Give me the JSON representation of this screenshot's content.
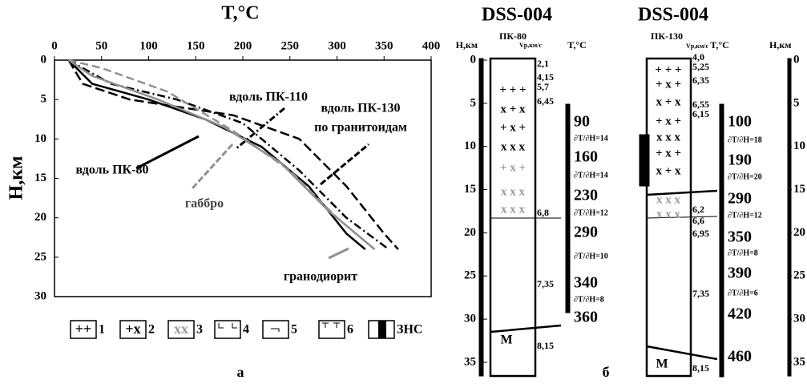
{
  "chart_data": {
    "type": "line",
    "title": "T,°C",
    "y_label": "H,км",
    "xlim": [
      0,
      400
    ],
    "xticks": [
      0,
      50,
      100,
      150,
      200,
      250,
      300,
      350,
      400
    ],
    "ylim": [
      30,
      0
    ],
    "yticks": [
      0,
      5,
      10,
      15,
      20,
      25,
      30
    ],
    "y_inverted": true,
    "series": [
      {
        "color": "#000000",
        "dash": "10,4,2,4",
        "x": [
          15,
          60,
          130,
          200,
          260,
          310,
          355
        ],
        "values": [
          0,
          3,
          5,
          8,
          14,
          20,
          24
        ]
      },
      {
        "color": "#000000",
        "dash": "12,5",
        "x": [
          15,
          30,
          80,
          190,
          260,
          310,
          350,
          365
        ],
        "values": [
          0,
          3,
          5,
          7,
          10,
          16,
          22,
          24
        ]
      },
      {
        "color": "#000000",
        "dash": "",
        "x": [
          15,
          40,
          100,
          160,
          220,
          270,
          310,
          330
        ],
        "values": [
          0,
          3,
          5,
          7.5,
          11,
          16,
          22,
          24
        ]
      },
      {
        "color": "#909090",
        "dash": "",
        "x": [
          15,
          40,
          110,
          180,
          240,
          290,
          340
        ],
        "values": [
          0,
          2,
          5,
          8.5,
          13,
          19,
          24
        ]
      },
      {
        "color": "#909090",
        "dash": "10,5",
        "x": [
          15,
          50,
          120,
          190,
          250,
          300,
          340
        ],
        "values": [
          0,
          1,
          4,
          9,
          14,
          20,
          24
        ]
      }
    ],
    "annotations": [
      "вдоль ПК-110",
      "вдоль ПК-130",
      "по гранитоидам",
      "вдоль ПК-80",
      "габбро",
      "гранодиорит"
    ],
    "legend": [
      {
        "symbol": "++",
        "label": "1"
      },
      {
        "symbol": "+x",
        "label": "2"
      },
      {
        "symbol": "xx",
        "label": "3"
      },
      {
        "label": "4"
      },
      {
        "label": "5"
      },
      {
        "label": "6"
      },
      {
        "label": "ЗНС"
      }
    ]
  },
  "columns": [
    {
      "title": "DSS-004",
      "profile": "ПК-80",
      "h_label": "H,км",
      "v_label": "Vp,км/с",
      "t_label": "T,°C",
      "depth_ticks": [
        0,
        5,
        10,
        15,
        20,
        25,
        30,
        35
      ],
      "velocities": [
        "2,1",
        "4,15",
        "5,7",
        "6,45",
        "6,8",
        "7,35",
        "8,15"
      ],
      "temperatures": [
        "90",
        "160",
        "230",
        "290",
        "340",
        "360"
      ],
      "gradients": [
        "∂T/∂H=14",
        "∂T/∂H=14",
        "∂T/∂H=12",
        "∂T/∂H=10",
        "∂T/∂H=8"
      ],
      "rows": [
        "+ + +",
        "x + x",
        "+ x +",
        "x x x",
        "+ x +",
        "x x x",
        "x x x"
      ],
      "moho": "M"
    },
    {
      "title": "DSS-004",
      "profile": "ПК-130",
      "h_label": "H,км",
      "v_label": "Vp,км/с",
      "t_label": "T,°C",
      "depth_ticks": [
        0,
        5,
        10,
        15,
        20,
        25,
        30,
        35
      ],
      "velocities": [
        "4,0",
        "5,25",
        "6,35",
        "6,55",
        "6,15",
        "6,2",
        "6,6",
        "6,95",
        "7,35",
        "8,15"
      ],
      "temperatures": [
        "100",
        "190",
        "290",
        "350",
        "390",
        "420",
        "460"
      ],
      "gradients": [
        "∂T/∂H=18",
        "∂T/∂H=20",
        "∂T/∂H=12",
        "∂T/∂H=8",
        "∂T/∂H=6"
      ],
      "rows": [
        "+ + +",
        "+ x +",
        "x + x",
        "+ x +",
        "x x x",
        "+ x +",
        "x + x",
        "x x x",
        "x x x"
      ],
      "moho": "M"
    }
  ],
  "panel_labels": [
    "а",
    "б"
  ]
}
